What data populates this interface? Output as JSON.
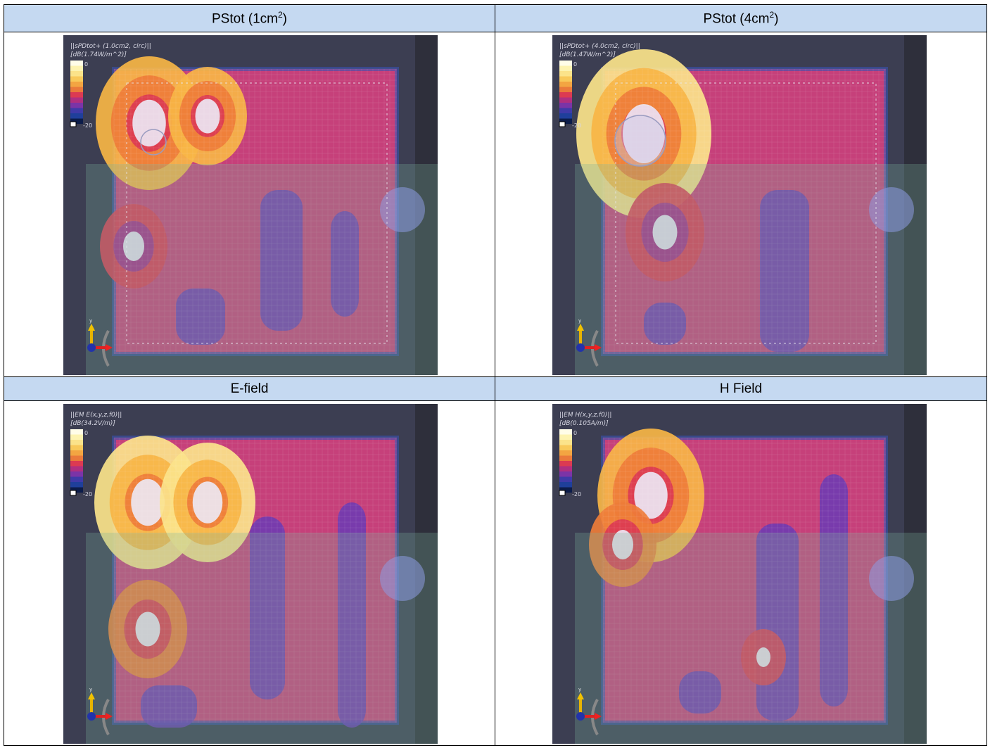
{
  "panels": [
    {
      "title_base": "PStot (1cm",
      "title_sup": "2",
      "title_end": ")",
      "overlay_line1": "||sPDtot+ (1.0cm2, circ)||",
      "overlay_line2": "[dB(1.74W/m^2)]",
      "scale_max": "0",
      "scale_min": "-20"
    },
    {
      "title_base": "PStot (4cm",
      "title_sup": "2",
      "title_end": ")",
      "overlay_line1": "||sPDtot+ (4.0cm2, circ)||",
      "overlay_line2": "[dB(1.47W/m^2)]",
      "scale_max": "0",
      "scale_min": "-20"
    },
    {
      "title": "E-field",
      "overlay_line1": "||EM E(x,y,z,f0)||",
      "overlay_line2": "[dB(34.2V/m)]",
      "scale_max": "0",
      "scale_min": "-20"
    },
    {
      "title": "H Field",
      "overlay_line1": "||EM H(x,y,z,f0)||",
      "overlay_line2": "[dB(0.105A/m)]",
      "scale_max": "0",
      "scale_min": "-20"
    }
  ],
  "colors": {
    "header_bg": "#c5d9f1",
    "viewport_bg": "#3c3e52",
    "colormap": [
      "#fffde8",
      "#fbe38a",
      "#f7b545",
      "#ee7c38",
      "#dc3a52",
      "#a32f8c",
      "#5d3aa6",
      "#1f3f9b",
      "#0a0a14"
    ]
  }
}
